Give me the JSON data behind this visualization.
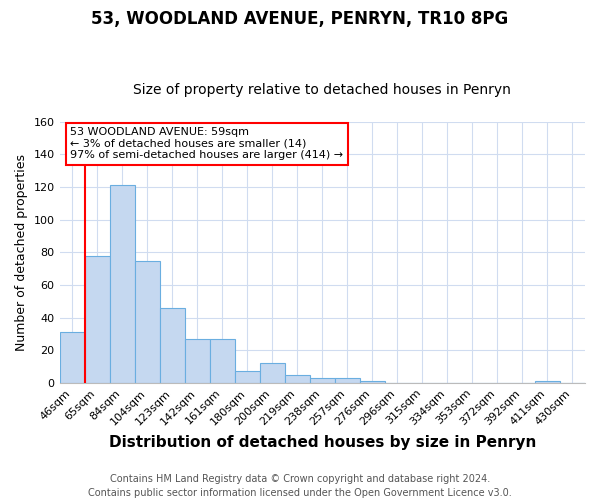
{
  "title": "53, WOODLAND AVENUE, PENRYN, TR10 8PG",
  "subtitle": "Size of property relative to detached houses in Penryn",
  "xlabel": "Distribution of detached houses by size in Penryn",
  "ylabel": "Number of detached properties",
  "bar_labels": [
    "46sqm",
    "65sqm",
    "84sqm",
    "104sqm",
    "123sqm",
    "142sqm",
    "161sqm",
    "180sqm",
    "200sqm",
    "219sqm",
    "238sqm",
    "257sqm",
    "276sqm",
    "296sqm",
    "315sqm",
    "334sqm",
    "353sqm",
    "372sqm",
    "392sqm",
    "411sqm",
    "430sqm"
  ],
  "bar_values": [
    31,
    78,
    121,
    75,
    46,
    27,
    27,
    7,
    12,
    5,
    3,
    3,
    1,
    0,
    0,
    0,
    0,
    0,
    0,
    1,
    0
  ],
  "bar_color": "#c5d8f0",
  "bar_edge_color": "#6aaee0",
  "red_line_index": 1,
  "ylim": [
    0,
    160
  ],
  "yticks": [
    0,
    20,
    40,
    60,
    80,
    100,
    120,
    140,
    160
  ],
  "annotation_title": "53 WOODLAND AVENUE: 59sqm",
  "annotation_line1": "← 3% of detached houses are smaller (14)",
  "annotation_line2": "97% of semi-detached houses are larger (414) →",
  "footer_line1": "Contains HM Land Registry data © Crown copyright and database right 2024.",
  "footer_line2": "Contains public sector information licensed under the Open Government Licence v3.0.",
  "background_color": "#ffffff",
  "plot_background_color": "#ffffff",
  "grid_color": "#d0dcf0",
  "title_fontsize": 12,
  "subtitle_fontsize": 10,
  "xlabel_fontsize": 11,
  "ylabel_fontsize": 9,
  "tick_fontsize": 8,
  "footer_fontsize": 7
}
